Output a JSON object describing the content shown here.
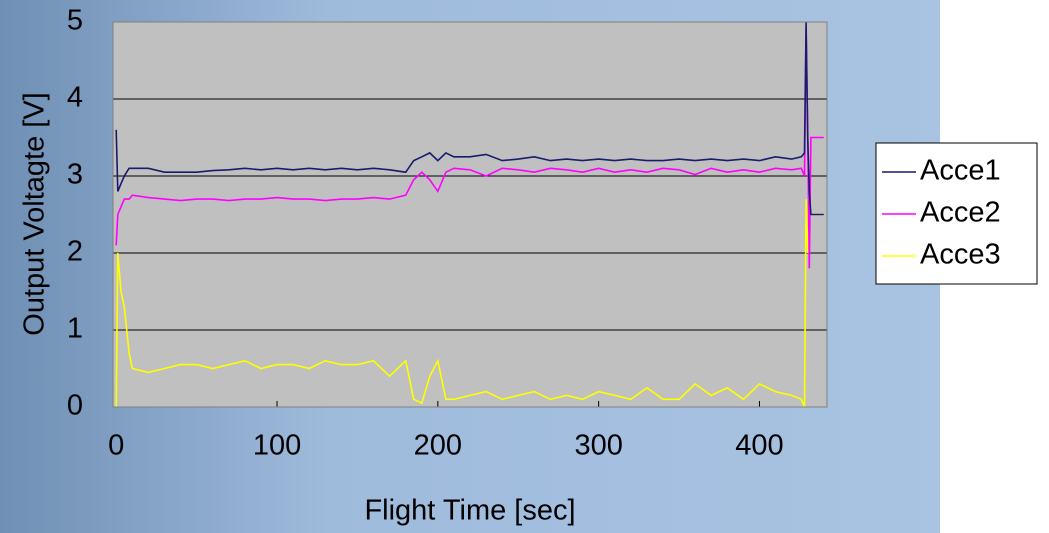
{
  "chart_data": {
    "type": "line",
    "x_label": "Flight Time [sec]",
    "y_label": "Output Voltagte [V]",
    "xlim": [
      -2,
      442
    ],
    "ylim": [
      0,
      5
    ],
    "xticks": [
      0,
      100,
      200,
      300,
      400
    ],
    "yticks": [
      0,
      1,
      2,
      3,
      4,
      5
    ],
    "grid": true,
    "legend": "right",
    "x": [
      0,
      1,
      3,
      5,
      8,
      10,
      20,
      30,
      40,
      50,
      60,
      70,
      80,
      90,
      100,
      110,
      120,
      130,
      140,
      150,
      160,
      170,
      180,
      185,
      190,
      195,
      200,
      205,
      210,
      220,
      230,
      240,
      250,
      260,
      270,
      280,
      290,
      300,
      310,
      320,
      330,
      340,
      350,
      360,
      370,
      380,
      390,
      400,
      410,
      420,
      426,
      428,
      429,
      430,
      431,
      432,
      435,
      440
    ],
    "series": [
      {
        "name": "Acce1",
        "color": "#1a1a6e",
        "values": [
          3.6,
          2.8,
          2.9,
          3.0,
          3.1,
          3.1,
          3.1,
          3.05,
          3.05,
          3.05,
          3.07,
          3.08,
          3.1,
          3.08,
          3.1,
          3.08,
          3.1,
          3.08,
          3.1,
          3.08,
          3.1,
          3.08,
          3.05,
          3.2,
          3.25,
          3.3,
          3.2,
          3.3,
          3.25,
          3.25,
          3.28,
          3.2,
          3.22,
          3.25,
          3.2,
          3.22,
          3.2,
          3.22,
          3.2,
          3.22,
          3.2,
          3.2,
          3.22,
          3.2,
          3.22,
          3.2,
          3.22,
          3.2,
          3.25,
          3.22,
          3.25,
          3.3,
          5.0,
          3.5,
          2.8,
          2.5,
          2.5,
          2.5
        ]
      },
      {
        "name": "Acce2",
        "color": "#ff00ff",
        "values": [
          2.1,
          2.5,
          2.6,
          2.7,
          2.7,
          2.75,
          2.72,
          2.7,
          2.68,
          2.7,
          2.7,
          2.68,
          2.7,
          2.7,
          2.72,
          2.7,
          2.7,
          2.68,
          2.7,
          2.7,
          2.72,
          2.7,
          2.75,
          2.95,
          3.05,
          2.95,
          2.8,
          3.05,
          3.1,
          3.08,
          3.0,
          3.1,
          3.08,
          3.05,
          3.1,
          3.08,
          3.05,
          3.1,
          3.05,
          3.08,
          3.05,
          3.1,
          3.08,
          3.02,
          3.1,
          3.05,
          3.08,
          3.05,
          3.1,
          3.08,
          3.1,
          3.0,
          4.9,
          3.6,
          1.8,
          3.5,
          3.5,
          3.5
        ]
      },
      {
        "name": "Acce3",
        "color": "#ffff00",
        "values": [
          0,
          2.0,
          1.5,
          1.3,
          0.7,
          0.5,
          0.45,
          0.5,
          0.55,
          0.55,
          0.5,
          0.55,
          0.6,
          0.5,
          0.55,
          0.55,
          0.5,
          0.6,
          0.55,
          0.55,
          0.6,
          0.4,
          0.6,
          0.1,
          0.05,
          0.4,
          0.6,
          0.1,
          0.1,
          0.15,
          0.2,
          0.1,
          0.15,
          0.2,
          0.1,
          0.15,
          0.1,
          0.2,
          0.15,
          0.1,
          0.25,
          0.1,
          0.1,
          0.3,
          0.15,
          0.25,
          0.1,
          0.3,
          0.2,
          0.15,
          0.1,
          0.0,
          2.7,
          2.0,
          2.5,
          2.5,
          2.5,
          2.5
        ]
      }
    ]
  }
}
